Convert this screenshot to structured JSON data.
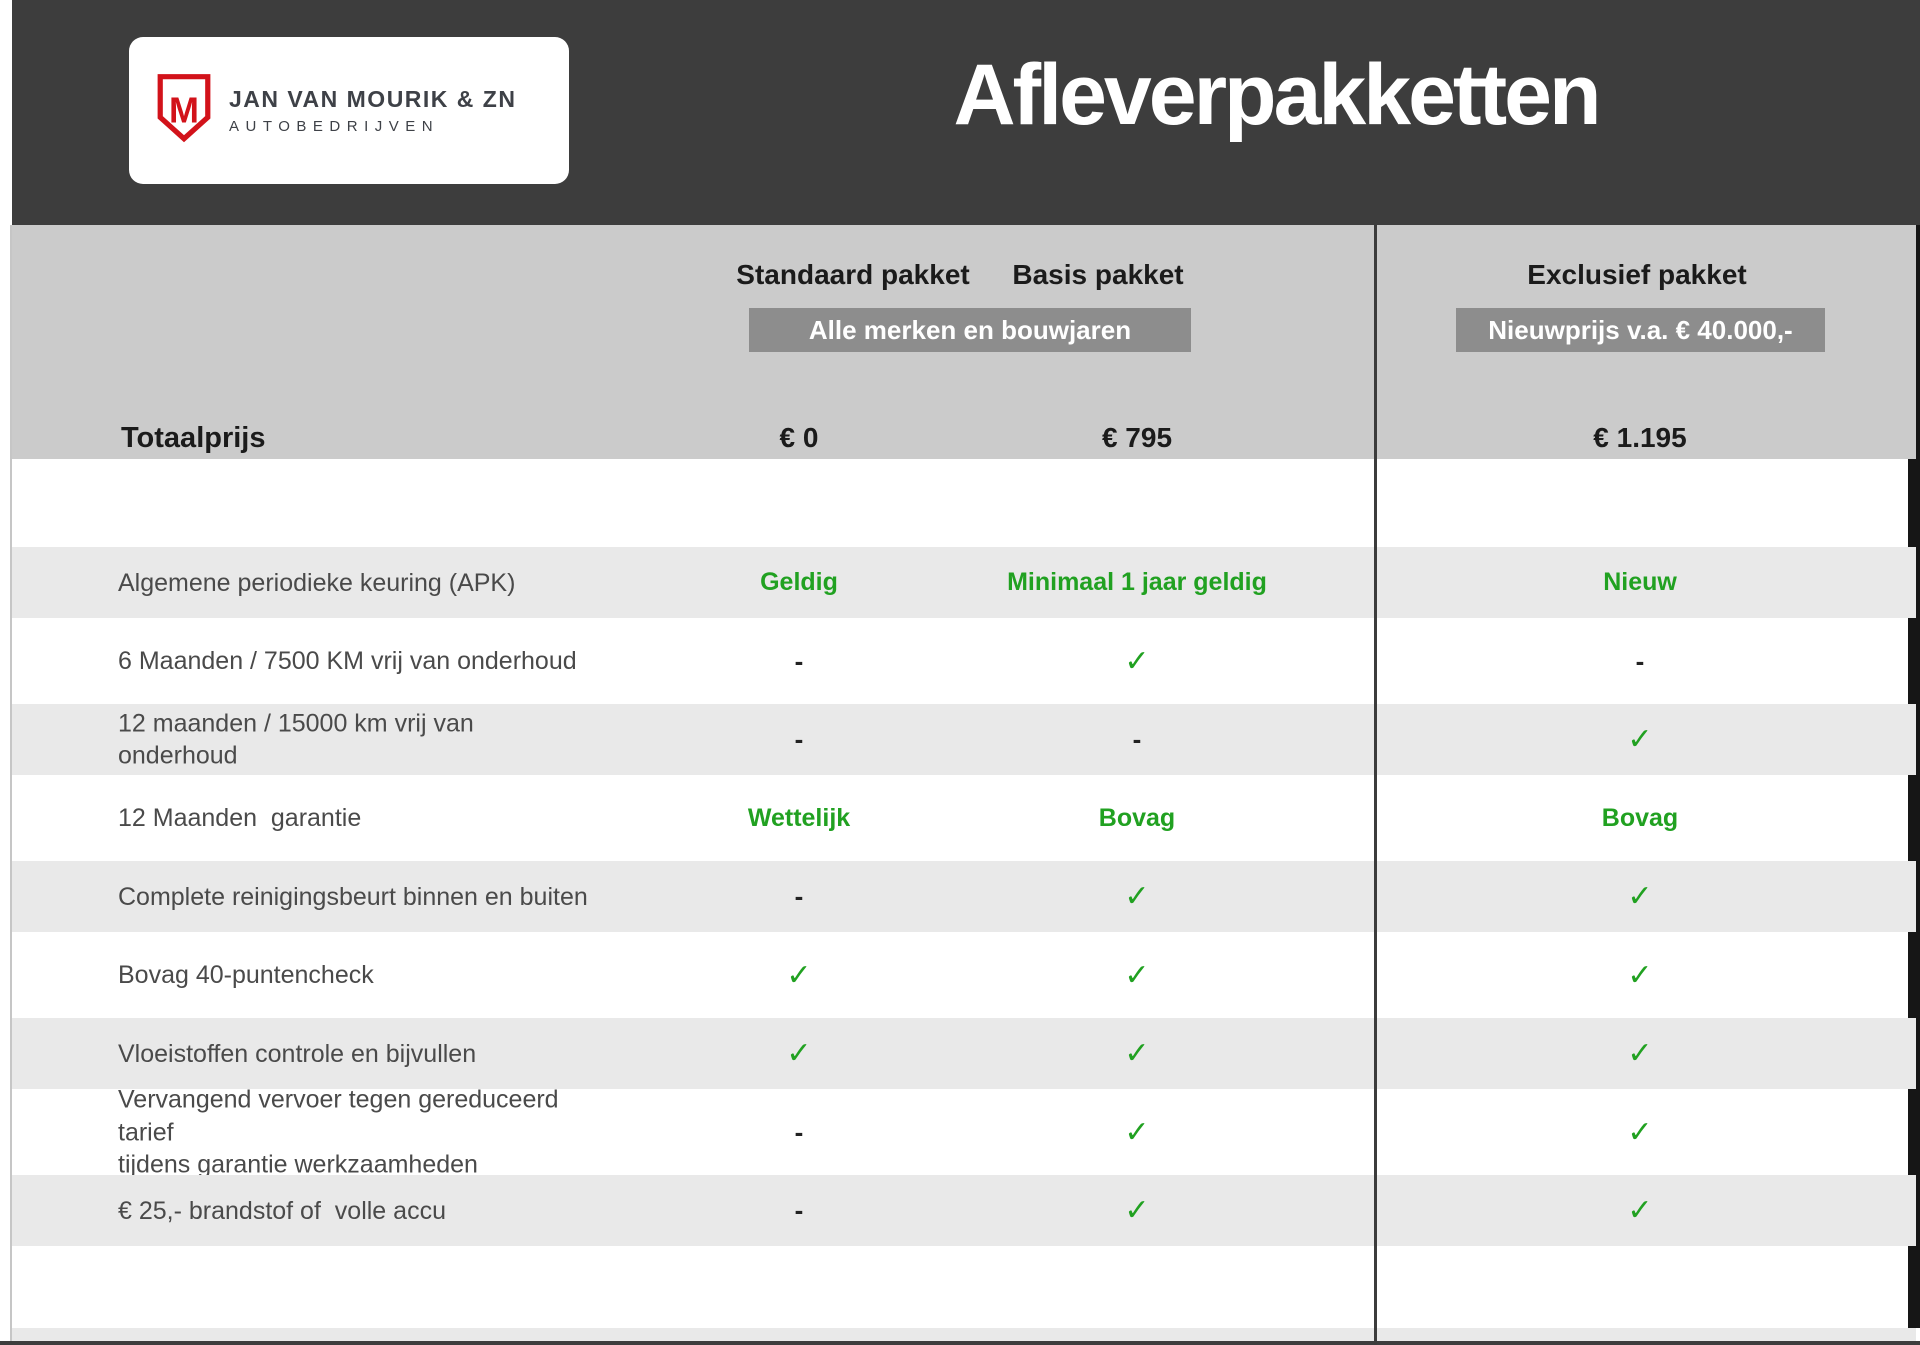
{
  "brand": {
    "name": "JAN VAN MOURIK & ZN",
    "subtitle": "AUTOBEDRIJVEN",
    "logo_letter": "M"
  },
  "header": {
    "title": "Afleverpakketten"
  },
  "columns": [
    {
      "label": "Standaard pakket"
    },
    {
      "label": "Basis pakket"
    },
    {
      "label": "Exclusief pakket"
    }
  ],
  "badges": {
    "left": "Alle merken en bouwjaren",
    "right": "Nieuwprijs v.a. € 40.000,-"
  },
  "totals": {
    "label": "Totaalprijs",
    "values": [
      "€ 0",
      "€ 795",
      "€ 1.195"
    ]
  },
  "rows": [
    {
      "label": "Algemene periodieke keuring (APK)",
      "standaard": "Geldig",
      "basis": "Minimaal 1 jaar geldig",
      "exclusief": "Nieuw"
    },
    {
      "label": "6 Maanden / 7500 KM vrij van onderhoud",
      "standaard": "-",
      "basis": "✓",
      "exclusief": "-"
    },
    {
      "label": "12 maanden / 15000 km vrij van onderhoud",
      "standaard": "-",
      "basis": "-",
      "exclusief": "✓"
    },
    {
      "label": "12 Maanden  garantie",
      "standaard": "Wettelijk",
      "basis": "Bovag",
      "exclusief": "Bovag"
    },
    {
      "label": "Complete reinigingsbeurt binnen en buiten",
      "standaard": "-",
      "basis": "✓",
      "exclusief": "✓"
    },
    {
      "label": "Bovag 40-puntencheck",
      "standaard": "✓",
      "basis": "✓",
      "exclusief": "✓"
    },
    {
      "label": "Vloeistoffen controle en bijvullen",
      "standaard": "✓",
      "basis": "✓",
      "exclusief": "✓"
    },
    {
      "label": "Vervangend vervoer tegen gereduceerd tarief\ntijdens garantie werkzaamheden",
      "standaard": "-",
      "basis": "✓",
      "exclusief": "✓"
    },
    {
      "label": "€ 25,- brandstof of  volle accu",
      "standaard": "-",
      "basis": "✓",
      "exclusief": "✓"
    }
  ],
  "colors": {
    "header_dark": "#3d3d3d",
    "band_gray": "#cbcbcb",
    "badge_gray": "#8d8d8d",
    "stripe_gray": "#e9e9e9",
    "accent_green": "#21a121",
    "logo_red": "#d2121a"
  }
}
